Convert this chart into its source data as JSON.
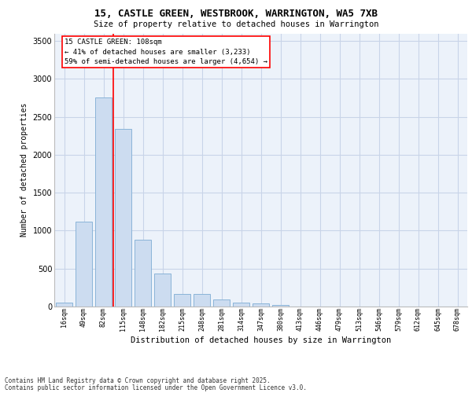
{
  "title_line1": "15, CASTLE GREEN, WESTBROOK, WARRINGTON, WA5 7XB",
  "title_line2": "Size of property relative to detached houses in Warrington",
  "xlabel": "Distribution of detached houses by size in Warrington",
  "ylabel": "Number of detached properties",
  "bar_labels": [
    "16sqm",
    "49sqm",
    "82sqm",
    "115sqm",
    "148sqm",
    "182sqm",
    "215sqm",
    "248sqm",
    "281sqm",
    "314sqm",
    "347sqm",
    "380sqm",
    "413sqm",
    "446sqm",
    "479sqm",
    "513sqm",
    "546sqm",
    "579sqm",
    "612sqm",
    "645sqm",
    "678sqm"
  ],
  "bar_values": [
    50,
    1120,
    2760,
    2340,
    880,
    440,
    165,
    165,
    90,
    55,
    40,
    25,
    0,
    0,
    0,
    0,
    0,
    0,
    0,
    0,
    0
  ],
  "bar_color": "#ccdcf0",
  "bar_edgecolor": "#8ab4d8",
  "property_line_x": 2.5,
  "annotation_text": "15 CASTLE GREEN: 108sqm\n← 41% of detached houses are smaller (3,233)\n59% of semi-detached houses are larger (4,654) →",
  "ylim": [
    0,
    3600
  ],
  "yticks": [
    0,
    500,
    1000,
    1500,
    2000,
    2500,
    3000,
    3500
  ],
  "grid_color": "#c8d4e8",
  "bg_color": "#ecf2fa",
  "footer_line1": "Contains HM Land Registry data © Crown copyright and database right 2025.",
  "footer_line2": "Contains public sector information licensed under the Open Government Licence v3.0."
}
